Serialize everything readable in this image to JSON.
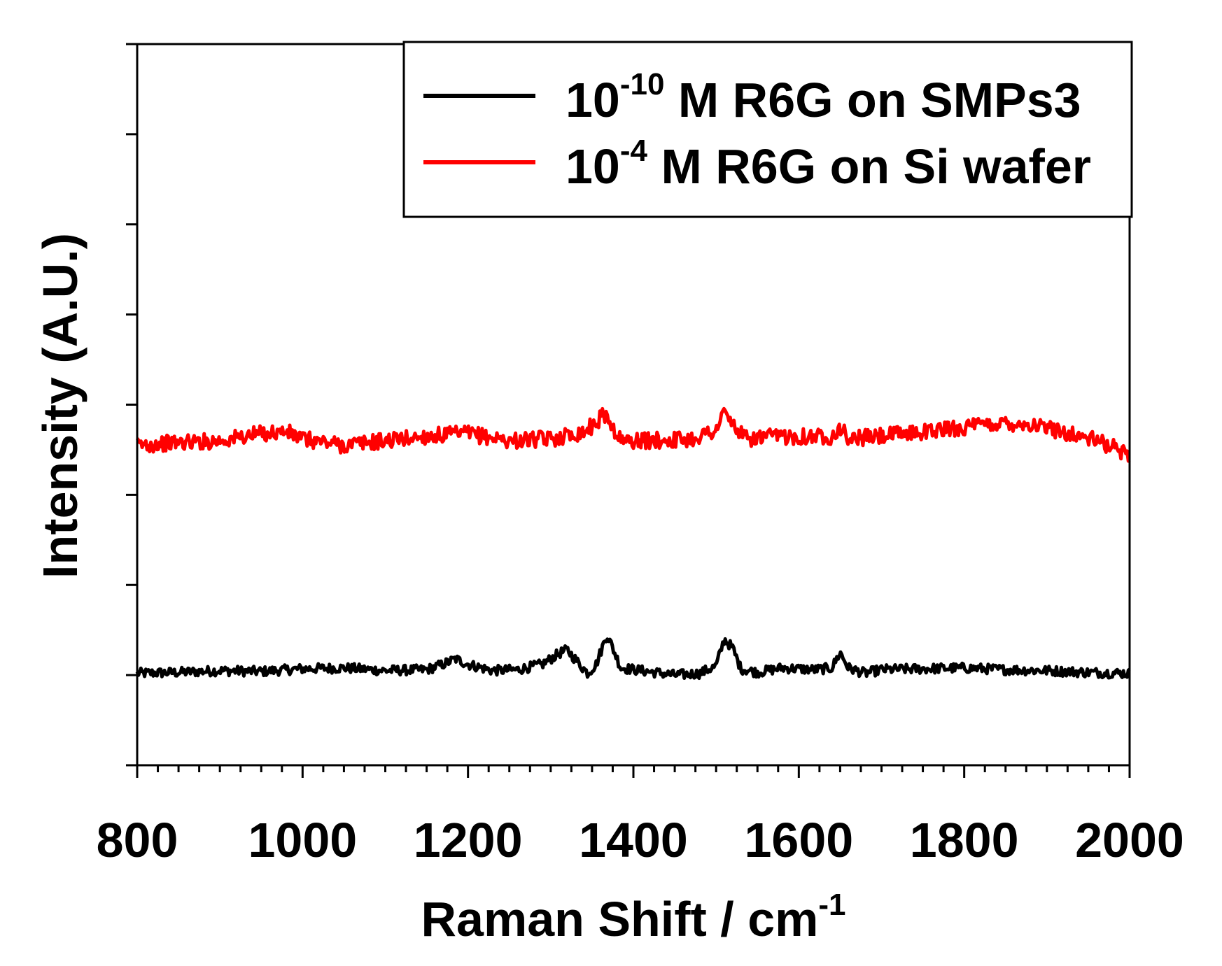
{
  "chart_data": {
    "type": "line",
    "xlabel": "Raman Shift / cm",
    "xlabel_sup": "-1",
    "ylabel": "Intensity (A.U.)",
    "xlim": [
      800,
      2000
    ],
    "ylim": [
      -1,
      7
    ],
    "x_ticks": [
      800,
      1000,
      1200,
      1400,
      1600,
      1800,
      2000
    ],
    "y_tick_labels_shown": false,
    "legend_position": "top-right",
    "series": [
      {
        "name_base": "10",
        "name_exp": "-10",
        "name_rest": " M R6G on SMPs3",
        "color": "#000000",
        "points": [
          [
            800,
            0.02
          ],
          [
            850,
            0.03
          ],
          [
            900,
            0.05
          ],
          [
            950,
            0.04
          ],
          [
            1000,
            0.07
          ],
          [
            1050,
            0.08
          ],
          [
            1100,
            0.05
          ],
          [
            1150,
            0.06
          ],
          [
            1170,
            0.12
          ],
          [
            1185,
            0.18
          ],
          [
            1200,
            0.12
          ],
          [
            1230,
            0.05
          ],
          [
            1260,
            0.06
          ],
          [
            1290,
            0.12
          ],
          [
            1310,
            0.24
          ],
          [
            1320,
            0.28
          ],
          [
            1335,
            0.12
          ],
          [
            1345,
            0.02
          ],
          [
            1355,
            0.12
          ],
          [
            1368,
            0.45
          ],
          [
            1375,
            0.3
          ],
          [
            1385,
            0.08
          ],
          [
            1410,
            0.05
          ],
          [
            1450,
            0.0
          ],
          [
            1480,
            0.02
          ],
          [
            1500,
            0.1
          ],
          [
            1510,
            0.4
          ],
          [
            1520,
            0.3
          ],
          [
            1530,
            0.07
          ],
          [
            1550,
            0.03
          ],
          [
            1580,
            0.08
          ],
          [
            1620,
            0.06
          ],
          [
            1640,
            0.08
          ],
          [
            1650,
            0.25
          ],
          [
            1660,
            0.08
          ],
          [
            1680,
            0.02
          ],
          [
            1700,
            0.06
          ],
          [
            1750,
            0.07
          ],
          [
            1800,
            0.08
          ],
          [
            1850,
            0.06
          ],
          [
            1900,
            0.05
          ],
          [
            1950,
            0.03
          ],
          [
            2000,
            0.02
          ]
        ]
      },
      {
        "name_base": "10",
        "name_exp": "-4",
        "name_rest": " M R6G on Si wafer",
        "color": "#ff0000",
        "points": [
          [
            800,
            2.55
          ],
          [
            850,
            2.58
          ],
          [
            900,
            2.6
          ],
          [
            950,
            2.68
          ],
          [
            980,
            2.7
          ],
          [
            1000,
            2.62
          ],
          [
            1050,
            2.55
          ],
          [
            1100,
            2.6
          ],
          [
            1150,
            2.65
          ],
          [
            1200,
            2.68
          ],
          [
            1250,
            2.6
          ],
          [
            1300,
            2.62
          ],
          [
            1340,
            2.7
          ],
          [
            1355,
            2.8
          ],
          [
            1365,
            2.9
          ],
          [
            1375,
            2.75
          ],
          [
            1385,
            2.6
          ],
          [
            1420,
            2.6
          ],
          [
            1470,
            2.62
          ],
          [
            1500,
            2.72
          ],
          [
            1510,
            2.92
          ],
          [
            1520,
            2.78
          ],
          [
            1535,
            2.62
          ],
          [
            1580,
            2.65
          ],
          [
            1640,
            2.65
          ],
          [
            1650,
            2.75
          ],
          [
            1660,
            2.62
          ],
          [
            1700,
            2.65
          ],
          [
            1750,
            2.7
          ],
          [
            1800,
            2.75
          ],
          [
            1850,
            2.8
          ],
          [
            1880,
            2.78
          ],
          [
            1920,
            2.7
          ],
          [
            1960,
            2.6
          ],
          [
            2000,
            2.45
          ]
        ]
      }
    ]
  }
}
